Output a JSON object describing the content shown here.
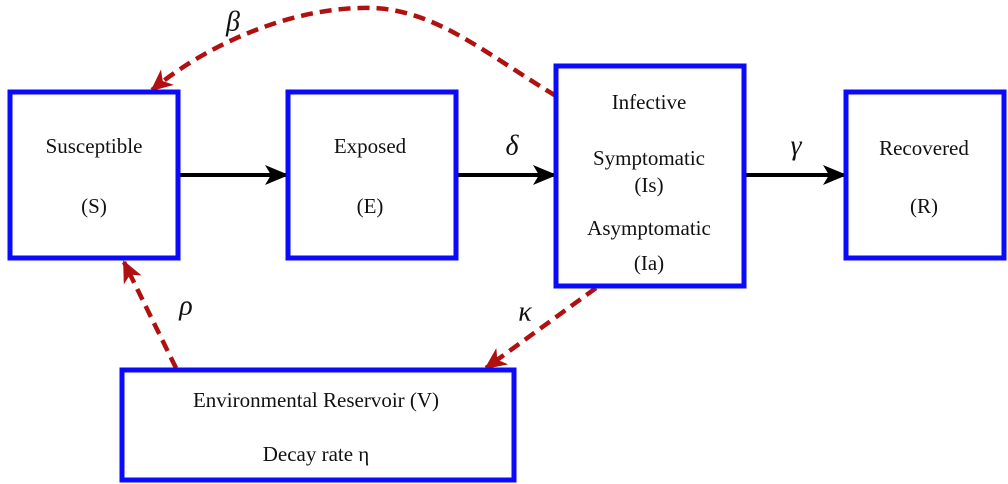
{
  "nodes": [
    {
      "lines": [
        "Susceptible",
        "(S)"
      ]
    },
    {
      "lines": [
        "Exposed",
        "(E)"
      ]
    },
    {
      "lines": [
        "Infective",
        "Symptomatic",
        "(Is)",
        "Asymptomatic",
        "(Ia)"
      ]
    },
    {
      "lines": [
        "Recovered",
        "(R)"
      ]
    },
    {
      "lines": [
        "Environmental Reservoir (V)",
        "Decay rate η"
      ]
    }
  ],
  "edges": [
    {
      "label": "β"
    },
    {
      "label": "δ"
    },
    {
      "label": "γ"
    },
    {
      "label": "ρ"
    },
    {
      "label": "κ"
    }
  ]
}
